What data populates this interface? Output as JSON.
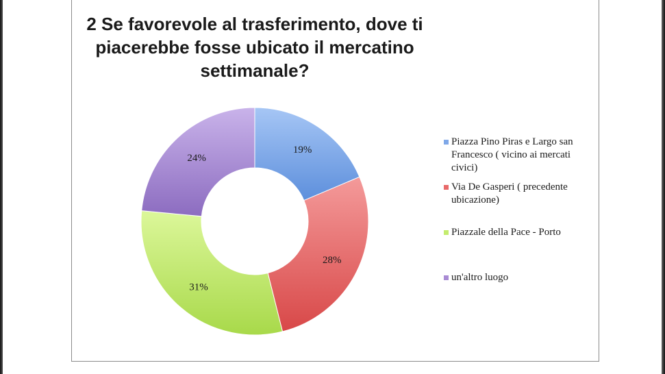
{
  "chart_data": {
    "type": "pie",
    "title": "2 Se favorevole al trasferimento, dove ti piacerebbe fosse ubicato il mercatino settimanale?",
    "donut": true,
    "legend_position": "right",
    "categories": [
      "Piazza Pino Piras e Largo san Francesco ( vicino ai mercati civici)",
      "Via De Gasperi ( precedente ubicazione)",
      "Piazzale della Pace - Porto",
      "un'altro luogo"
    ],
    "values": [
      19,
      28,
      31,
      24
    ],
    "value_labels": [
      "19%",
      "28%",
      "31%",
      "24%"
    ],
    "colors": [
      "#7fa8e8",
      "#e86a6a",
      "#c4ec6e",
      "#a98bd4"
    ],
    "color_gradients": [
      [
        "#a6c6f5",
        "#5d8fdc"
      ],
      [
        "#f49a9a",
        "#d84848"
      ],
      [
        "#dcf79a",
        "#a8d94a"
      ],
      [
        "#c9b3ea",
        "#8c6cc0"
      ]
    ]
  }
}
